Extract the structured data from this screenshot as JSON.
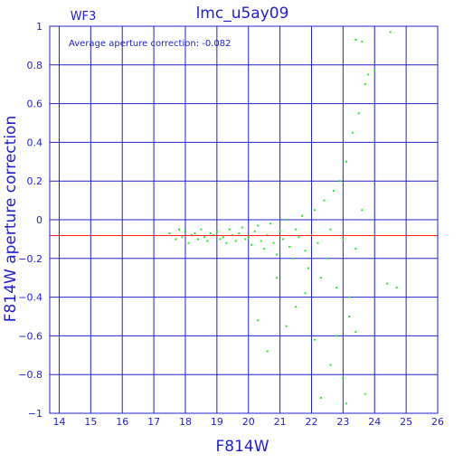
{
  "chart_data": {
    "type": "scatter",
    "title": "lmc_u5ay09",
    "panel_label": "WF3",
    "annotation": "Average aperture correction: -0.082",
    "xlabel": "F814W",
    "ylabel": "F814W aperture correction",
    "xlim": [
      13.7,
      26
    ],
    "ylim": [
      -1,
      1
    ],
    "x_ticks": [
      "14",
      "15",
      "16",
      "17",
      "18",
      "19",
      "20",
      "21",
      "22",
      "23",
      "24",
      "25",
      "26"
    ],
    "y_ticks": [
      "1",
      "0.8",
      "0.6",
      "0.4",
      "0.2",
      "0",
      "−0.2",
      "−0.4",
      "−0.6",
      "−0.8",
      "−1"
    ],
    "reference_line_y": -0.082,
    "grid": true,
    "colors": {
      "points": "#22ee22",
      "reference_line": "#ff2222",
      "grid": "#2222cc",
      "text": "#1f1fcf"
    },
    "series": [
      {
        "values_xy": [
          [
            17.5,
            -0.07
          ],
          [
            17.7,
            -0.1
          ],
          [
            17.8,
            -0.05
          ],
          [
            17.9,
            -0.09
          ],
          [
            18.0,
            -0.06
          ],
          [
            18.1,
            -0.12
          ],
          [
            18.2,
            -0.08
          ],
          [
            18.3,
            -0.07
          ],
          [
            18.4,
            -0.1
          ],
          [
            18.5,
            -0.05
          ],
          [
            18.6,
            -0.09
          ],
          [
            18.7,
            -0.11
          ],
          [
            18.8,
            -0.07
          ],
          [
            18.9,
            -0.08
          ],
          [
            19.0,
            -0.06
          ],
          [
            19.1,
            -0.1
          ],
          [
            19.2,
            -0.09
          ],
          [
            19.3,
            -0.12
          ],
          [
            19.4,
            -0.05
          ],
          [
            19.5,
            -0.08
          ],
          [
            19.6,
            -0.11
          ],
          [
            19.7,
            -0.07
          ],
          [
            19.8,
            -0.04
          ],
          [
            19.9,
            -0.1
          ],
          [
            20.0,
            -0.09
          ],
          [
            20.1,
            -0.13
          ],
          [
            20.2,
            -0.06
          ],
          [
            20.3,
            -0.03
          ],
          [
            20.4,
            -0.11
          ],
          [
            20.5,
            -0.15
          ],
          [
            20.6,
            -0.08
          ],
          [
            20.7,
            -0.02
          ],
          [
            20.8,
            -0.12
          ],
          [
            20.9,
            -0.18
          ],
          [
            21.0,
            -0.06
          ],
          [
            21.1,
            -0.1
          ],
          [
            21.2,
            0.0
          ],
          [
            21.3,
            -0.14
          ],
          [
            21.4,
            -0.2
          ],
          [
            21.5,
            -0.05
          ],
          [
            21.6,
            -0.09
          ],
          [
            21.7,
            0.02
          ],
          [
            21.8,
            -0.16
          ],
          [
            21.9,
            -0.25
          ],
          [
            22.0,
            -0.08
          ],
          [
            22.1,
            0.05
          ],
          [
            22.2,
            -0.12
          ],
          [
            22.3,
            -0.3
          ],
          [
            22.4,
            0.1
          ],
          [
            22.5,
            -0.2
          ],
          [
            22.6,
            -0.05
          ],
          [
            22.7,
            0.15
          ],
          [
            22.8,
            -0.35
          ],
          [
            22.9,
            0.2
          ],
          [
            23.0,
            -0.1
          ],
          [
            23.1,
            0.3
          ],
          [
            23.2,
            -0.4
          ],
          [
            23.3,
            0.45
          ],
          [
            23.4,
            -0.15
          ],
          [
            23.5,
            0.55
          ],
          [
            23.6,
            0.05
          ],
          [
            23.7,
            0.7
          ],
          [
            23.8,
            0.75
          ],
          [
            24.0,
            0.77
          ],
          [
            23.4,
            0.93
          ],
          [
            23.6,
            0.92
          ],
          [
            24.5,
            0.97
          ],
          [
            24.7,
            -0.35
          ],
          [
            24.4,
            -0.33
          ],
          [
            20.3,
            -0.52
          ],
          [
            20.6,
            -0.68
          ],
          [
            21.2,
            -0.55
          ],
          [
            21.5,
            -0.45
          ],
          [
            22.1,
            -0.62
          ],
          [
            22.3,
            -0.92
          ],
          [
            22.6,
            -0.75
          ],
          [
            23.0,
            -0.82
          ],
          [
            23.1,
            -0.95
          ],
          [
            23.4,
            -0.58
          ],
          [
            23.7,
            -0.9
          ],
          [
            23.2,
            -0.5
          ],
          [
            22.8,
            -0.6
          ],
          [
            21.8,
            -0.38
          ],
          [
            20.9,
            -0.3
          ]
        ]
      }
    ]
  }
}
